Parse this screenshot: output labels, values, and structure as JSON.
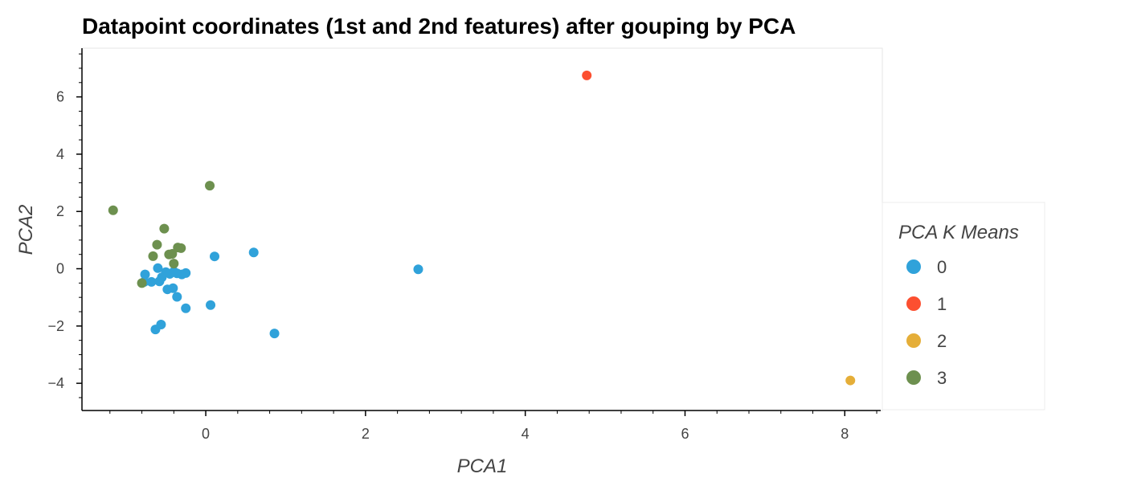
{
  "chart_data": {
    "type": "scatter",
    "title": "Datapoint coordinates (1st and 2nd features) after gouping by PCA",
    "xlabel": "PCA1",
    "ylabel": "PCA2",
    "xlim": [
      -1.55,
      8.45
    ],
    "ylim": [
      -4.95,
      7.7
    ],
    "xticks": [
      0,
      2,
      4,
      6,
      8
    ],
    "yticks": [
      -4,
      -2,
      0,
      2,
      4,
      6
    ],
    "grid": false,
    "legend": {
      "title": "PCA K Means",
      "placement": "right",
      "entries": [
        {
          "label": "0",
          "color": "#30a2da"
        },
        {
          "label": "1",
          "color": "#fc4f30"
        },
        {
          "label": "2",
          "color": "#e5ae38"
        },
        {
          "label": "3",
          "color": "#6d904f"
        }
      ]
    },
    "series": [
      {
        "name": "0",
        "color": "#30a2da",
        "points": [
          [
            -0.76,
            -0.2
          ],
          [
            -0.77,
            -0.46
          ],
          [
            -0.68,
            -0.46
          ],
          [
            -0.58,
            -0.44
          ],
          [
            -0.6,
            0.02
          ],
          [
            -0.55,
            -0.3
          ],
          [
            -0.5,
            -0.12
          ],
          [
            -0.45,
            -0.18
          ],
          [
            -0.4,
            -0.1
          ],
          [
            -0.36,
            -0.16
          ],
          [
            -0.3,
            -0.2
          ],
          [
            -0.48,
            -0.72
          ],
          [
            -0.41,
            -0.68
          ],
          [
            -0.36,
            -0.98
          ],
          [
            -0.25,
            -1.38
          ],
          [
            -0.56,
            -1.95
          ],
          [
            -0.63,
            -2.12
          ],
          [
            0.06,
            -1.27
          ],
          [
            0.11,
            0.43
          ],
          [
            0.6,
            0.57
          ],
          [
            0.86,
            -2.26
          ],
          [
            2.66,
            -0.02
          ],
          [
            -0.25,
            -0.15
          ]
        ]
      },
      {
        "name": "1",
        "color": "#fc4f30",
        "points": [
          [
            4.77,
            6.75
          ]
        ]
      },
      {
        "name": "2",
        "color": "#e5ae38",
        "points": [
          [
            8.07,
            -3.9
          ]
        ]
      },
      {
        "name": "3",
        "color": "#6d904f",
        "points": [
          [
            -1.16,
            2.04
          ],
          [
            0.05,
            2.9
          ],
          [
            -0.52,
            1.4
          ],
          [
            -0.61,
            0.84
          ],
          [
            -0.66,
            0.44
          ],
          [
            -0.46,
            0.5
          ],
          [
            -0.42,
            0.52
          ],
          [
            -0.35,
            0.74
          ],
          [
            -0.31,
            0.72
          ],
          [
            -0.4,
            0.18
          ],
          [
            -0.8,
            -0.5
          ]
        ]
      }
    ]
  }
}
